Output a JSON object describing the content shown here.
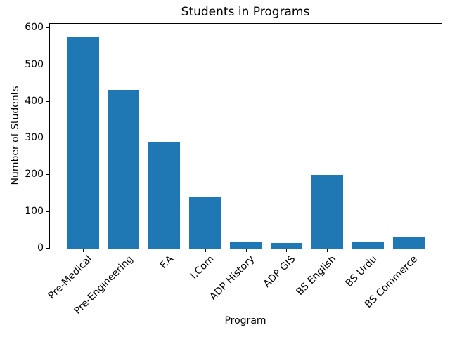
{
  "chart_data": {
    "type": "bar",
    "title": "Students in Programs",
    "xlabel": "Program",
    "ylabel": "Number of Students",
    "categories": [
      "Pre-Medical",
      "Pre-Engineering",
      "F.A",
      "I.Com",
      "ADP History",
      "ADP GIS",
      "BS English",
      "BS Urdu",
      "BS Commerce"
    ],
    "values": [
      575,
      432,
      291,
      140,
      18,
      15,
      201,
      20,
      30
    ],
    "yticks": [
      0,
      100,
      200,
      300,
      400,
      500,
      600
    ],
    "ylim": [
      0,
      612
    ],
    "bar_color": "#1f77b4",
    "axis_color": "#000000",
    "background_color": "#ffffff",
    "grid": false,
    "legend_position": "none"
  }
}
